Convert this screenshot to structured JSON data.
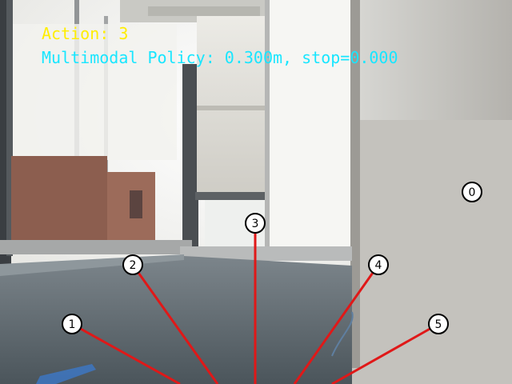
{
  "hud": {
    "action_line": "Action: 3",
    "policy_line": "Multimodal Policy: 0.300m, stop=0.000"
  },
  "actions": {
    "selected": 3,
    "candidates": [
      {
        "id": 0,
        "label": "0",
        "has_ray": false
      },
      {
        "id": 1,
        "label": "1",
        "has_ray": true
      },
      {
        "id": 2,
        "label": "2",
        "has_ray": true
      },
      {
        "id": 3,
        "label": "3",
        "has_ray": true
      },
      {
        "id": 4,
        "label": "4",
        "has_ray": true
      },
      {
        "id": 5,
        "label": "5",
        "has_ray": true
      }
    ]
  },
  "colors": {
    "ray": "#e01818",
    "action_text": "#ffee00",
    "policy_text": "#18e6ff",
    "marker_fill": "#ffffff",
    "marker_stroke": "#000000"
  }
}
